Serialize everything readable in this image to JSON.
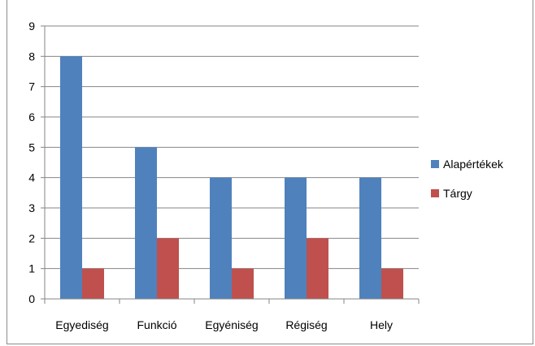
{
  "chart_data": {
    "type": "bar",
    "categories": [
      "Egyediség",
      "Funkció",
      "Egyéniség",
      "Régiség",
      "Hely"
    ],
    "series": [
      {
        "name": "Alapértékek",
        "values": [
          8,
          5,
          4,
          4,
          4
        ],
        "color": "#4f81bd"
      },
      {
        "name": "Tárgy",
        "values": [
          1,
          2,
          1,
          2,
          1
        ],
        "color": "#c0504d"
      }
    ],
    "yticks": [
      "0",
      "1",
      "2",
      "3",
      "4",
      "5",
      "6",
      "7",
      "8",
      "9"
    ],
    "ylim": [
      0,
      9
    ],
    "grid": true,
    "legend": "right"
  }
}
